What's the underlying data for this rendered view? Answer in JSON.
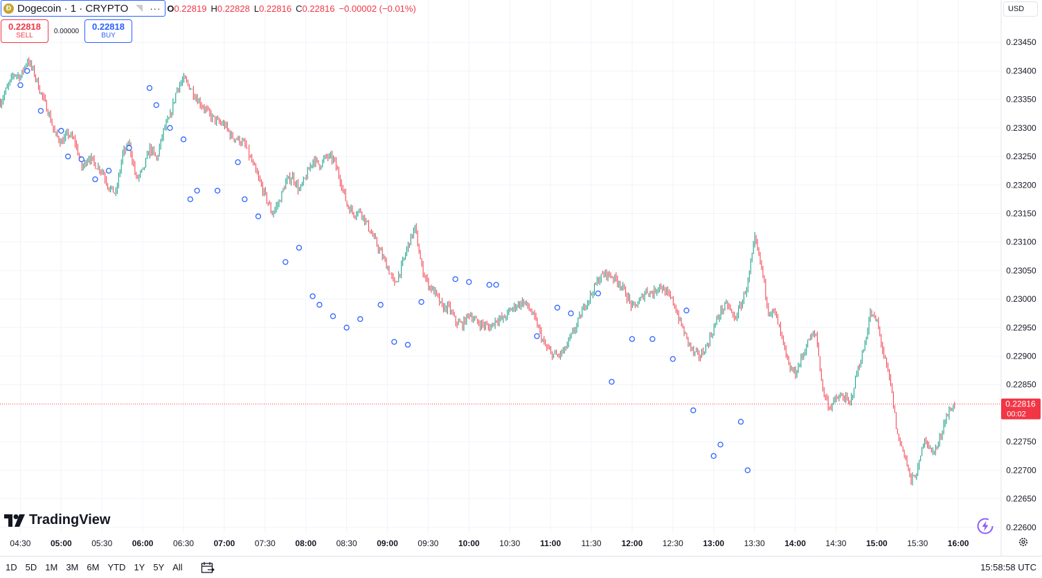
{
  "header": {
    "symbol_title": "Dogecoin · 1 · CRYPTO",
    "coin_glyph": "Ð",
    "more_icon": "···",
    "ohlc": {
      "o_label": "O",
      "o_value": "0.22819",
      "h_label": "H",
      "h_value": "0.22828",
      "l_label": "L",
      "l_value": "0.22816",
      "c_label": "C",
      "c_value": "0.22816",
      "change": "−0.00002 (−0.01%)"
    }
  },
  "trade": {
    "sell_price": "0.22818",
    "sell_label": "SELL",
    "spread": "0.00000",
    "buy_price": "0.22818",
    "buy_label": "BUY"
  },
  "currency": "USD",
  "brand": "TradingView",
  "ranges": [
    "1D",
    "5D",
    "1M",
    "3M",
    "6M",
    "YTD",
    "1Y",
    "5Y",
    "All"
  ],
  "clock": "15:58:58 UTC",
  "colors": {
    "up": "#089981",
    "down": "#f23645",
    "marker": "#2962ff",
    "grid": "#f0f3fa"
  },
  "chart_data": {
    "type": "candlestick",
    "title": "Dogecoin · 1 · CRYPTO",
    "x_ticks": [
      "04:30",
      "05:00",
      "05:30",
      "06:00",
      "06:30",
      "07:00",
      "07:30",
      "08:00",
      "08:30",
      "09:00",
      "09:30",
      "10:00",
      "10:30",
      "11:00",
      "11:30",
      "12:00",
      "12:30",
      "13:00",
      "13:30",
      "14:00",
      "14:30",
      "15:00",
      "15:30",
      "16:00"
    ],
    "bold_ticks": [
      "05:00",
      "06:00",
      "07:00",
      "08:00",
      "09:00",
      "10:00",
      "11:00",
      "12:00",
      "13:00",
      "14:00",
      "15:00",
      "16:00"
    ],
    "x_range": [
      "04:15",
      "16:31"
    ],
    "y_ticks": [
      "0.23450",
      "0.23400",
      "0.23350",
      "0.23300",
      "0.23250",
      "0.23200",
      "0.23150",
      "0.23100",
      "0.23050",
      "0.23000",
      "0.22950",
      "0.22900",
      "0.22850",
      "0.22750",
      "0.22700",
      "0.22650",
      "0.22600"
    ],
    "ylim": [
      0.2259,
      0.235
    ],
    "last_price": {
      "value": 0.22816,
      "label": "0.22816",
      "countdown": "00:02"
    },
    "series_close": [
      [
        "04:15",
        0.23345
      ],
      [
        "04:20",
        0.2337
      ],
      [
        "04:25",
        0.23395
      ],
      [
        "04:30",
        0.2339
      ],
      [
        "04:35",
        0.2342
      ],
      [
        "04:40",
        0.23395
      ],
      [
        "04:45",
        0.2336
      ],
      [
        "04:50",
        0.2333
      ],
      [
        "04:55",
        0.2329
      ],
      [
        "05:00",
        0.23275
      ],
      [
        "05:05",
        0.2329
      ],
      [
        "05:10",
        0.23275
      ],
      [
        "05:15",
        0.2323
      ],
      [
        "05:20",
        0.2325
      ],
      [
        "05:25",
        0.23235
      ],
      [
        "05:30",
        0.23225
      ],
      [
        "05:35",
        0.23195
      ],
      [
        "05:40",
        0.23185
      ],
      [
        "05:45",
        0.23255
      ],
      [
        "05:50",
        0.2327
      ],
      [
        "05:55",
        0.2321
      ],
      [
        "06:00",
        0.23225
      ],
      [
        "06:05",
        0.23265
      ],
      [
        "06:10",
        0.23245
      ],
      [
        "06:15",
        0.23295
      ],
      [
        "06:20",
        0.2332
      ],
      [
        "06:25",
        0.2337
      ],
      [
        "06:30",
        0.23385
      ],
      [
        "06:35",
        0.2337
      ],
      [
        "06:40",
        0.2335
      ],
      [
        "06:45",
        0.23335
      ],
      [
        "06:50",
        0.2332
      ],
      [
        "06:55",
        0.2331
      ],
      [
        "07:00",
        0.23305
      ],
      [
        "07:05",
        0.23285
      ],
      [
        "07:10",
        0.2328
      ],
      [
        "07:15",
        0.2327
      ],
      [
        "07:20",
        0.2324
      ],
      [
        "07:25",
        0.2321
      ],
      [
        "07:30",
        0.2318
      ],
      [
        "07:35",
        0.2315
      ],
      [
        "07:40",
        0.2317
      ],
      [
        "07:45",
        0.23205
      ],
      [
        "07:50",
        0.23215
      ],
      [
        "07:55",
        0.2319
      ],
      [
        "08:00",
        0.23215
      ],
      [
        "08:05",
        0.23245
      ],
      [
        "08:10",
        0.23235
      ],
      [
        "08:15",
        0.2325
      ],
      [
        "08:20",
        0.23245
      ],
      [
        "08:25",
        0.2321
      ],
      [
        "08:30",
        0.23165
      ],
      [
        "08:35",
        0.2315
      ],
      [
        "08:40",
        0.23155
      ],
      [
        "08:45",
        0.2313
      ],
      [
        "08:50",
        0.23105
      ],
      [
        "08:55",
        0.2308
      ],
      [
        "09:00",
        0.23055
      ],
      [
        "09:05",
        0.23025
      ],
      [
        "09:10",
        0.23055
      ],
      [
        "09:15",
        0.23095
      ],
      [
        "09:20",
        0.23125
      ],
      [
        "09:25",
        0.23055
      ],
      [
        "09:30",
        0.23025
      ],
      [
        "09:35",
        0.2301
      ],
      [
        "09:40",
        0.22985
      ],
      [
        "09:45",
        0.22985
      ],
      [
        "09:50",
        0.2296
      ],
      [
        "09:55",
        0.22955
      ],
      [
        "10:00",
        0.22975
      ],
      [
        "10:05",
        0.2296
      ],
      [
        "10:10",
        0.22955
      ],
      [
        "10:15",
        0.2295
      ],
      [
        "10:20",
        0.22965
      ],
      [
        "10:25",
        0.22965
      ],
      [
        "10:30",
        0.2298
      ],
      [
        "10:35",
        0.2299
      ],
      [
        "10:40",
        0.22995
      ],
      [
        "10:45",
        0.2298
      ],
      [
        "10:50",
        0.22955
      ],
      [
        "10:55",
        0.2292
      ],
      [
        "11:00",
        0.22905
      ],
      [
        "11:05",
        0.229
      ],
      [
        "11:10",
        0.2291
      ],
      [
        "11:15",
        0.22935
      ],
      [
        "11:20",
        0.2296
      ],
      [
        "11:25",
        0.2299
      ],
      [
        "11:30",
        0.2301
      ],
      [
        "11:35",
        0.23035
      ],
      [
        "11:40",
        0.23045
      ],
      [
        "11:45",
        0.2304
      ],
      [
        "11:50",
        0.2303
      ],
      [
        "11:55",
        0.2301
      ],
      [
        "12:00",
        0.22985
      ],
      [
        "12:05",
        0.22995
      ],
      [
        "12:10",
        0.23015
      ],
      [
        "12:15",
        0.2301
      ],
      [
        "12:20",
        0.23025
      ],
      [
        "12:25",
        0.2301
      ],
      [
        "12:30",
        0.22995
      ],
      [
        "12:35",
        0.2296
      ],
      [
        "12:40",
        0.2293
      ],
      [
        "12:45",
        0.22905
      ],
      [
        "12:50",
        0.229
      ],
      [
        "12:55",
        0.2292
      ],
      [
        "13:00",
        0.2295
      ],
      [
        "13:05",
        0.2298
      ],
      [
        "13:10",
        0.2299
      ],
      [
        "13:15",
        0.22965
      ],
      [
        "13:20",
        0.2299
      ],
      [
        "13:25",
        0.2303
      ],
      [
        "13:30",
        0.23105
      ],
      [
        "13:35",
        0.23055
      ],
      [
        "13:40",
        0.2298
      ],
      [
        "13:45",
        0.22975
      ],
      [
        "13:50",
        0.2293
      ],
      [
        "13:55",
        0.2288
      ],
      [
        "14:00",
        0.2287
      ],
      [
        "14:05",
        0.229
      ],
      [
        "14:10",
        0.2293
      ],
      [
        "14:15",
        0.2294
      ],
      [
        "14:20",
        0.2284
      ],
      [
        "14:25",
        0.2281
      ],
      [
        "14:30",
        0.22825
      ],
      [
        "14:35",
        0.2283
      ],
      [
        "14:40",
        0.22815
      ],
      [
        "14:45",
        0.2287
      ],
      [
        "14:50",
        0.2291
      ],
      [
        "14:55",
        0.22975
      ],
      [
        "15:00",
        0.2296
      ],
      [
        "15:05",
        0.229
      ],
      [
        "15:10",
        0.2285
      ],
      [
        "15:15",
        0.2276
      ],
      [
        "15:20",
        0.2273
      ],
      [
        "15:25",
        0.2268
      ],
      [
        "15:30",
        0.227
      ],
      [
        "15:35",
        0.2276
      ],
      [
        "15:40",
        0.2273
      ],
      [
        "15:45",
        0.22745
      ],
      [
        "15:50",
        0.2279
      ],
      [
        "15:55",
        0.2281
      ],
      [
        "15:58",
        0.22816
      ]
    ],
    "markers": [
      [
        "04:30",
        0.23375
      ],
      [
        "04:35",
        0.234
      ],
      [
        "04:45",
        0.2333
      ],
      [
        "05:00",
        0.23295
      ],
      [
        "05:05",
        0.2325
      ],
      [
        "05:15",
        0.23245
      ],
      [
        "05:25",
        0.2321
      ],
      [
        "05:35",
        0.23225
      ],
      [
        "05:50",
        0.23265
      ],
      [
        "06:05",
        0.2337
      ],
      [
        "06:10",
        0.2334
      ],
      [
        "06:20",
        0.233
      ],
      [
        "06:30",
        0.2328
      ],
      [
        "06:35",
        0.23175
      ],
      [
        "06:40",
        0.2319
      ],
      [
        "06:55",
        0.2319
      ],
      [
        "07:10",
        0.2324
      ],
      [
        "07:15",
        0.23175
      ],
      [
        "07:25",
        0.23145
      ],
      [
        "07:45",
        0.23065
      ],
      [
        "07:55",
        0.2309
      ],
      [
        "08:05",
        0.23005
      ],
      [
        "08:10",
        0.2299
      ],
      [
        "08:20",
        0.2297
      ],
      [
        "08:30",
        0.2295
      ],
      [
        "08:40",
        0.22965
      ],
      [
        "08:55",
        0.2299
      ],
      [
        "09:05",
        0.22925
      ],
      [
        "09:15",
        0.2292
      ],
      [
        "09:25",
        0.22995
      ],
      [
        "09:50",
        0.23035
      ],
      [
        "10:00",
        0.2303
      ],
      [
        "10:15",
        0.23025
      ],
      [
        "10:20",
        0.23025
      ],
      [
        "10:50",
        0.22935
      ],
      [
        "11:05",
        0.22985
      ],
      [
        "11:15",
        0.22975
      ],
      [
        "11:35",
        0.2301
      ],
      [
        "11:45",
        0.22855
      ],
      [
        "12:00",
        0.2293
      ],
      [
        "12:15",
        0.2293
      ],
      [
        "12:30",
        0.22895
      ],
      [
        "12:40",
        0.2298
      ],
      [
        "12:45",
        0.22805
      ],
      [
        "13:00",
        0.22725
      ],
      [
        "13:05",
        0.22745
      ],
      [
        "13:20",
        0.22785
      ],
      [
        "13:25",
        0.227
      ]
    ],
    "xlabel": "",
    "ylabel": ""
  }
}
